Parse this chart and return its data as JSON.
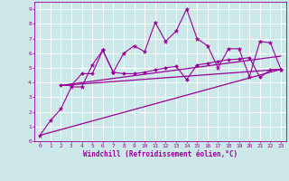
{
  "title": "",
  "xlabel": "Windchill (Refroidissement éolien,°C)",
  "bg_color": "#cce8e8",
  "grid_color": "#ffffff",
  "line_color": "#990099",
  "xlim": [
    -0.5,
    23.5
  ],
  "ylim": [
    0,
    9.5
  ],
  "xticks": [
    0,
    1,
    2,
    3,
    4,
    5,
    6,
    7,
    8,
    9,
    10,
    11,
    12,
    13,
    14,
    15,
    16,
    17,
    18,
    19,
    20,
    21,
    22,
    23
  ],
  "yticks": [
    0,
    1,
    2,
    3,
    4,
    5,
    6,
    7,
    8,
    9
  ],
  "line1_x": [
    0,
    1,
    2,
    3,
    4,
    5,
    6,
    7,
    8,
    9,
    10,
    11,
    12,
    13,
    14,
    15,
    16,
    17,
    18,
    19,
    20,
    21,
    22,
    23
  ],
  "line1_y": [
    0.4,
    1.4,
    2.2,
    3.7,
    3.7,
    5.2,
    6.2,
    4.7,
    6.0,
    6.5,
    6.1,
    8.1,
    6.8,
    7.5,
    9.0,
    7.0,
    6.5,
    5.0,
    6.3,
    6.3,
    4.4,
    6.8,
    6.7,
    4.9
  ],
  "line2_x": [
    2,
    3,
    4,
    5,
    6,
    7,
    8,
    9,
    10,
    11,
    12,
    13,
    14,
    15,
    16,
    17,
    18,
    19,
    20,
    21,
    22,
    23
  ],
  "line2_y": [
    3.8,
    3.8,
    4.6,
    4.6,
    6.2,
    4.7,
    4.6,
    4.6,
    4.7,
    4.85,
    5.0,
    5.1,
    4.2,
    5.2,
    5.3,
    5.45,
    5.55,
    5.6,
    5.7,
    4.35,
    4.85,
    4.9
  ],
  "line3_x": [
    2,
    23
  ],
  "line3_y": [
    3.8,
    4.9
  ],
  "line4_x": [
    0,
    23
  ],
  "line4_y": [
    0.4,
    4.9
  ],
  "line5_x": [
    2,
    23
  ],
  "line5_y": [
    3.8,
    5.8
  ]
}
